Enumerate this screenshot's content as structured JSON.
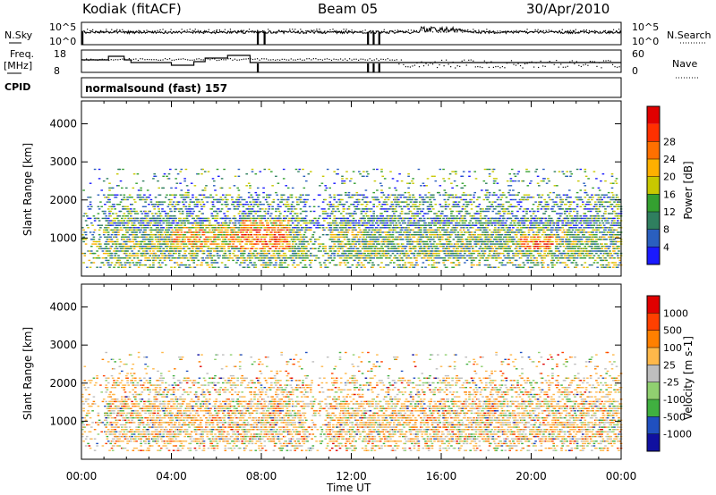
{
  "header": {
    "station": "Kodiak (fitACF)",
    "beam": "Beam 05",
    "date": "30/Apr/2010"
  },
  "noise_panel": {
    "left_label": "N.Sky",
    "right_label": "N.Search",
    "left_ticks": [
      "10^5",
      "10^0"
    ],
    "right_ticks": [
      "10^5",
      "10^0"
    ]
  },
  "freq_panel": {
    "left_label_1": "Freq.",
    "left_label_2": "[MHz]",
    "left_ticks": [
      "18",
      "8"
    ],
    "right_label": "Nave",
    "right_ticks": [
      "60",
      "0"
    ]
  },
  "cpid": {
    "label": "CPID",
    "text": "normalsound (fast) 157"
  },
  "colors": {
    "power": [
      "#1a1aff",
      "#2a5fbf",
      "#2f7f5f",
      "#34a030",
      "#c8c800",
      "#ffb000",
      "#ff7000",
      "#ff3000",
      "#e00000"
    ],
    "velocity": [
      "#e00000",
      "#ff4000",
      "#ff8000",
      "#ffb84a",
      "#bebebe",
      "#90d070",
      "#40b040",
      "#2050c0",
      "#1010a0"
    ]
  },
  "chart_data": [
    {
      "type": "heatmap",
      "title": "Power",
      "ylabel": "Slant Range [km]",
      "xlabel": "",
      "x_ticks": [
        "00:00",
        "04:00",
        "08:00",
        "12:00",
        "16:00",
        "20:00",
        "00:00"
      ],
      "y_ticks": [
        1000,
        2000,
        3000,
        4000
      ],
      "ylim": [
        0,
        4600
      ],
      "xlim_hours": [
        0,
        24
      ],
      "colorbar_label": "Power [dB]",
      "colorbar_ticks": [
        "4",
        "8",
        "12",
        "16",
        "20",
        "24",
        "28"
      ]
    },
    {
      "type": "heatmap",
      "title": "Velocity",
      "ylabel": "Slant Range [km]",
      "xlabel": "Time UT",
      "x_ticks": [
        "00:00",
        "04:00",
        "08:00",
        "12:00",
        "16:00",
        "20:00",
        "00:00"
      ],
      "y_ticks": [
        1000,
        2000,
        3000,
        4000
      ],
      "ylim": [
        0,
        4600
      ],
      "xlim_hours": [
        0,
        24
      ],
      "colorbar_label": "Velocity [m s-1]",
      "colorbar_ticks": [
        "1000",
        "500",
        "100",
        "25",
        "-25",
        "-100",
        "-500",
        "-1000"
      ]
    }
  ]
}
